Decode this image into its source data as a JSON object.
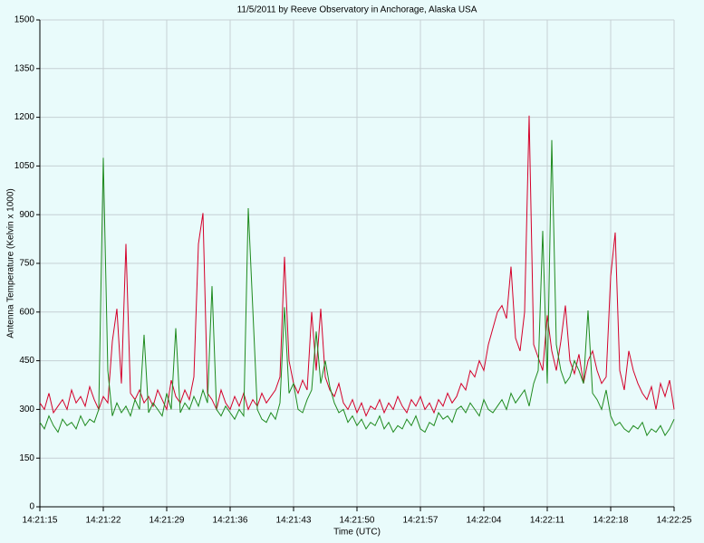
{
  "chart_data": {
    "type": "line",
    "title": "11/5/2011  by  Reeve Observatory  in  Anchorage, Alaska  USA",
    "xlabel": "Time (UTC)",
    "ylabel": "Antenna Temperature (Kelvin x 1000)",
    "grid": true,
    "xlim": [
      0,
      70
    ],
    "xticks": [
      {
        "value": 0,
        "label": "14:21:15"
      },
      {
        "value": 7,
        "label": "14:21:22"
      },
      {
        "value": 14,
        "label": "14:21:29"
      },
      {
        "value": 21,
        "label": "14:21:36"
      },
      {
        "value": 28,
        "label": "14:21:43"
      },
      {
        "value": 35,
        "label": "14:21:50"
      },
      {
        "value": 42,
        "label": "14:21:57"
      },
      {
        "value": 49,
        "label": "14:22:04"
      },
      {
        "value": 56,
        "label": "14:22:11"
      },
      {
        "value": 63,
        "label": "14:22:18"
      },
      {
        "value": 70,
        "label": "14:22:25"
      }
    ],
    "ylim": [
      0,
      1500
    ],
    "yticks": [
      0,
      150,
      300,
      450,
      600,
      750,
      900,
      1050,
      1200,
      1350,
      1500
    ],
    "x": [
      0,
      0.5,
      1,
      1.5,
      2,
      2.5,
      3,
      3.5,
      4,
      4.5,
      5,
      5.5,
      6,
      6.5,
      7,
      7.5,
      8,
      8.5,
      9,
      9.5,
      10,
      10.5,
      11,
      11.5,
      12,
      12.5,
      13,
      13.5,
      14,
      14.5,
      15,
      15.5,
      16,
      16.5,
      17,
      17.5,
      18,
      18.5,
      19,
      19.5,
      20,
      20.5,
      21,
      21.5,
      22,
      22.5,
      23,
      23.5,
      24,
      24.5,
      25,
      25.5,
      26,
      26.5,
      27,
      27.5,
      28,
      28.5,
      29,
      29.5,
      30,
      30.5,
      31,
      31.5,
      32,
      32.5,
      33,
      33.5,
      34,
      34.5,
      35,
      35.5,
      36,
      36.5,
      37,
      37.5,
      38,
      38.5,
      39,
      39.5,
      40,
      40.5,
      41,
      41.5,
      42,
      42.5,
      43,
      43.5,
      44,
      44.5,
      45,
      45.5,
      46,
      46.5,
      47,
      47.5,
      48,
      48.5,
      49,
      49.5,
      50,
      50.5,
      51,
      51.5,
      52,
      52.5,
      53,
      53.5,
      54,
      54.5,
      55,
      55.5,
      56,
      56.5,
      57,
      57.5,
      58,
      58.5,
      59,
      59.5,
      60,
      60.5,
      61,
      61.5,
      62,
      62.5,
      63,
      63.5,
      64,
      64.5,
      65,
      65.5,
      66,
      66.5,
      67,
      67.5,
      68,
      68.5,
      69,
      69.5,
      70
    ],
    "series": [
      {
        "color": "#d4002a",
        "values": [
          320,
          300,
          350,
          290,
          310,
          330,
          300,
          360,
          320,
          340,
          310,
          370,
          330,
          300,
          340,
          320,
          510,
          610,
          380,
          810,
          350,
          330,
          360,
          320,
          340,
          310,
          360,
          330,
          300,
          390,
          340,
          320,
          360,
          330,
          400,
          810,
          905,
          350,
          330,
          300,
          360,
          320,
          300,
          340,
          310,
          350,
          300,
          330,
          310,
          350,
          320,
          340,
          360,
          400,
          770,
          450,
          380,
          350,
          390,
          360,
          600,
          420,
          610,
          400,
          360,
          340,
          380,
          320,
          300,
          330,
          290,
          320,
          280,
          310,
          300,
          330,
          290,
          320,
          300,
          340,
          310,
          290,
          330,
          310,
          340,
          300,
          320,
          290,
          330,
          310,
          350,
          320,
          340,
          380,
          360,
          420,
          400,
          450,
          420,
          500,
          550,
          600,
          620,
          580,
          740,
          520,
          480,
          600,
          1205,
          500,
          460,
          420,
          590,
          480,
          420,
          510,
          620,
          450,
          410,
          470,
          380,
          450,
          480,
          420,
          380,
          400,
          710,
          845,
          420,
          360,
          480,
          420,
          380,
          350,
          330,
          370,
          300,
          380,
          340,
          390,
          300
        ]
      },
      {
        "color": "#1e8a1e",
        "values": [
          260,
          240,
          280,
          250,
          230,
          270,
          250,
          260,
          240,
          280,
          250,
          270,
          260,
          300,
          1075,
          420,
          280,
          320,
          290,
          310,
          280,
          330,
          300,
          530,
          290,
          320,
          300,
          280,
          350,
          300,
          550,
          290,
          320,
          300,
          340,
          310,
          360,
          320,
          680,
          300,
          280,
          310,
          290,
          270,
          300,
          280,
          920,
          610,
          300,
          270,
          260,
          290,
          270,
          320,
          615,
          350,
          380,
          300,
          290,
          330,
          360,
          540,
          380,
          450,
          370,
          320,
          290,
          300,
          260,
          280,
          250,
          270,
          240,
          260,
          250,
          280,
          240,
          260,
          230,
          250,
          240,
          270,
          250,
          280,
          240,
          230,
          260,
          250,
          290,
          270,
          280,
          260,
          300,
          310,
          290,
          320,
          300,
          280,
          330,
          300,
          290,
          310,
          330,
          300,
          350,
          320,
          340,
          360,
          310,
          380,
          420,
          850,
          380,
          1130,
          500,
          420,
          380,
          400,
          450,
          420,
          380,
          605,
          350,
          330,
          300,
          360,
          280,
          250,
          260,
          240,
          230,
          250,
          240,
          260,
          220,
          240,
          230,
          250,
          220,
          240,
          270
        ]
      }
    ]
  }
}
